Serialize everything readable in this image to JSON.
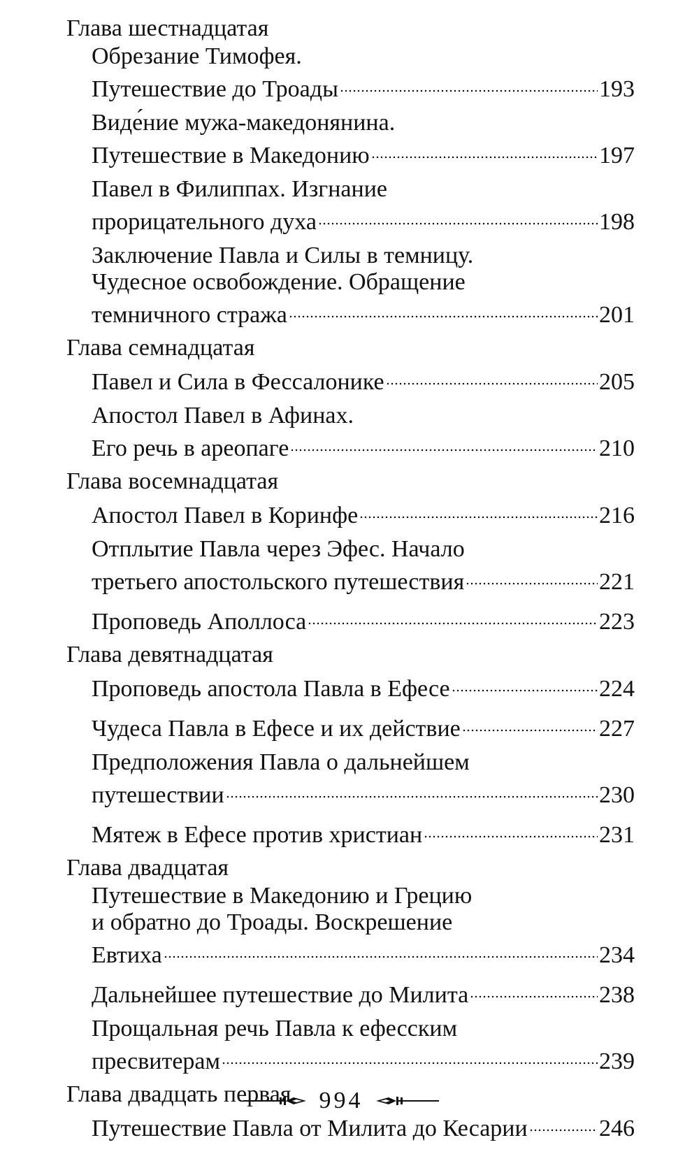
{
  "chapters": [
    {
      "title": "Глава шестнадцатая",
      "entries": [
        {
          "lines": [
            "Обрезание Тимофея.",
            "Путешествие до Троады"
          ],
          "page": "193"
        },
        {
          "lines": [
            "Виде́ние мужа-македонянина.",
            "Путешествие в Македонию"
          ],
          "page": "197"
        },
        {
          "lines": [
            "Павел в Филиппах. Изгнание",
            "прорицательного духа"
          ],
          "page": "198"
        },
        {
          "lines": [
            "Заключение Павла и Силы в темницу.",
            "Чудесное освобождение. Обращение",
            "темничного стража"
          ],
          "page": "201"
        }
      ]
    },
    {
      "title": "Глава семнадцатая",
      "entries": [
        {
          "lines": [
            "Павел и Сила в Фессалонике"
          ],
          "page": "205"
        },
        {
          "lines": [
            "Апостол Павел в Афинах.",
            "Его речь в ареопаге"
          ],
          "page": "210"
        }
      ]
    },
    {
      "title": "Глава восемнадцатая",
      "entries": [
        {
          "lines": [
            "Апостол Павел в Коринфе"
          ],
          "page": "216"
        },
        {
          "lines": [
            "Отплытие Павла через Эфес. Начало",
            "третьего апостольского путешествия"
          ],
          "page": "221"
        },
        {
          "lines": [
            "Проповедь Аполлоса"
          ],
          "page": "223"
        }
      ]
    },
    {
      "title": "Глава девятнадцатая",
      "entries": [
        {
          "lines": [
            "Проповедь апостола Павла в Ефесе"
          ],
          "page": "224"
        },
        {
          "lines": [
            "Чудеса Павла в Ефесе и их действие"
          ],
          "page": "227"
        },
        {
          "lines": [
            "Предположения Павла о дальнейшем",
            "путешествии"
          ],
          "page": "230"
        },
        {
          "lines": [
            "Мятеж в Ефесе против христиан"
          ],
          "page": "231"
        }
      ]
    },
    {
      "title": "Глава двадцатая",
      "entries": [
        {
          "lines": [
            "Путешествие в Македонию и Грецию",
            "и обратно до Троады. Воскрешение",
            "Евтиха"
          ],
          "page": "234"
        },
        {
          "lines": [
            "Дальнейшее путешествие до Милита"
          ],
          "page": "238"
        },
        {
          "lines": [
            "Прощальная речь Павла к ефесским",
            "пресвитерам"
          ],
          "page": "239"
        }
      ]
    },
    {
      "title": "Глава двадцать первая",
      "entries": [
        {
          "lines": [
            "Путешествие Павла от Милита до Кесарии"
          ],
          "page": "246"
        }
      ]
    }
  ],
  "footer": {
    "page_number": "994",
    "ornament": "fleuron-rule"
  }
}
